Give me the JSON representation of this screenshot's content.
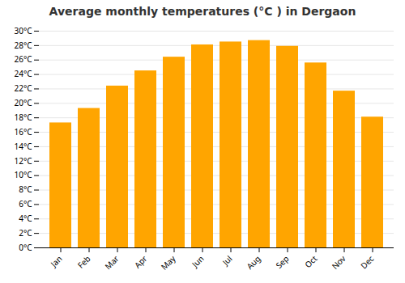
{
  "chart_data": {
    "type": "bar",
    "title": "Average monthly temperatures (°C ) in Dergaon",
    "categories": [
      "Jan",
      "Feb",
      "Mar",
      "Apr",
      "May",
      "Jun",
      "Jul",
      "Aug",
      "Sep",
      "Oct",
      "Nov",
      "Dec"
    ],
    "values": [
      17.3,
      19.3,
      22.4,
      24.5,
      26.4,
      28.1,
      28.5,
      28.7,
      27.9,
      25.6,
      21.7,
      18.1
    ],
    "color": "#FFA500",
    "ylim": [
      0,
      30
    ],
    "yticks": [
      {
        "value": 0,
        "label": "0°C"
      },
      {
        "value": 2,
        "label": "2°C"
      },
      {
        "value": 4,
        "label": "4°C"
      },
      {
        "value": 6,
        "label": "6°C"
      },
      {
        "value": 8,
        "label": "8°C"
      },
      {
        "value": 10,
        "label": "10°C"
      },
      {
        "value": 12,
        "label": "12°C"
      },
      {
        "value": 14,
        "label": "14°C"
      },
      {
        "value": 16,
        "label": "16°C"
      },
      {
        "value": 18,
        "label": "18°C"
      },
      {
        "value": 20,
        "label": "20°C"
      },
      {
        "value": 22,
        "label": "22°C"
      },
      {
        "value": 24,
        "label": "24°C"
      },
      {
        "value": 26,
        "label": "26°C"
      },
      {
        "value": 28,
        "label": "28°C"
      },
      {
        "value": 30,
        "label": "30°C"
      }
    ],
    "grid": true
  }
}
